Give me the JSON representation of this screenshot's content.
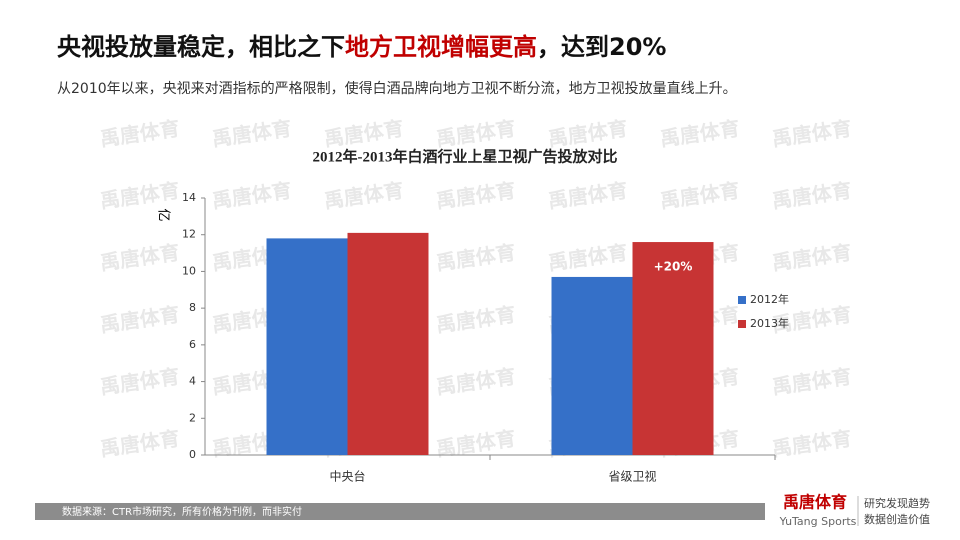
{
  "header": {
    "title_parts": [
      "央视投放量稳定，相比之下",
      "地方卫视增幅更高",
      "，达到20%"
    ],
    "subtitle": "从2010年以来，央视来对酒指标的严格限制，使得白酒品牌向地方卫视不断分流，地方卫视投放量直线上升。"
  },
  "watermark": "禹唐体育",
  "chart_data": {
    "type": "bar",
    "title": "2012年-2013年白酒行业上星卫视广告投放对比",
    "y_label": "亿",
    "categories": [
      "中央台",
      "省级卫视"
    ],
    "series": [
      {
        "name": "2012年",
        "color": "#3570c8",
        "values": [
          11.8,
          9.7
        ]
      },
      {
        "name": "2013年",
        "color": "#c73434",
        "values": [
          12.1,
          11.6
        ]
      }
    ],
    "annotation": "+20%",
    "ylim": [
      0,
      14
    ],
    "yticks": [
      0,
      2,
      4,
      6,
      8,
      10,
      12,
      14
    ],
    "legend": "right"
  },
  "footer": {
    "source": "数据来源：CTR市场研究，所有价格为刊例，而非实付"
  },
  "logo": {
    "name": "禹唐体育",
    "english": "YuTang Sports",
    "slogan1": "研究发现趋势",
    "slogan2": "数据创造价值"
  }
}
